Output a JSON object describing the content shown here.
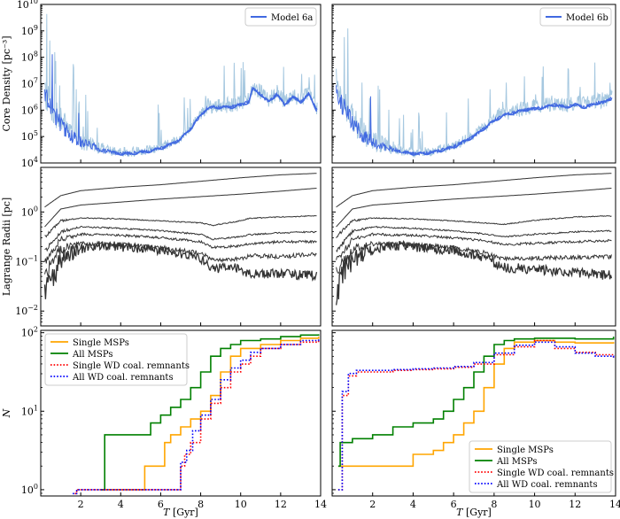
{
  "chart_data": {
    "type": "line",
    "x_axis": {
      "label_italic": "T",
      "label_unit": " [Gyr]",
      "ticks": [
        "2",
        "4",
        "6",
        "8",
        "10",
        "12",
        "14"
      ],
      "range": [
        0,
        14
      ]
    },
    "rows": [
      {
        "ylabel": "Core Density [pc⁻³]",
        "ytick_exponents": [
          "4",
          "5",
          "6",
          "7",
          "8",
          "9",
          "10"
        ],
        "yrange_log10": [
          4,
          10
        ]
      },
      {
        "ylabel": "Lagrange Radii [pc]",
        "ytick_exponents": [
          "−2",
          "−1",
          "0"
        ],
        "yrange_log10": [
          -2.3,
          0.9
        ]
      },
      {
        "ylabel": "N",
        "ytick_exponents": [
          "0",
          "1",
          "2"
        ],
        "yrange_log10": [
          -0.08,
          2.03
        ]
      }
    ],
    "panels": [
      {
        "legend": "Model 6a",
        "core_density_log10": {
          "x": [
            0.2,
            0.6,
            1.0,
            1.5,
            2.0,
            2.5,
            3.0,
            3.5,
            4.0,
            4.5,
            5.0,
            5.5,
            6.0,
            6.5,
            7.0,
            7.5,
            8.0,
            8.3,
            8.6,
            9.0,
            9.5,
            10.0,
            10.4,
            10.6,
            11.0,
            11.4,
            11.8,
            12.2,
            12.6,
            13.0,
            13.4,
            13.8
          ],
          "y": [
            6.5,
            5.9,
            5.4,
            5.0,
            4.75,
            4.6,
            4.5,
            4.4,
            4.35,
            4.35,
            4.4,
            4.45,
            4.55,
            4.7,
            4.9,
            5.3,
            5.8,
            6.05,
            6.1,
            6.1,
            6.1,
            6.2,
            6.3,
            6.8,
            6.6,
            6.3,
            6.6,
            6.2,
            6.5,
            6.3,
            6.6,
            6.0
          ]
        },
        "lagrange_radii_log10": [
          {
            "x": [
              0.2,
              1,
              2,
              4,
              6,
              8,
              10,
              12,
              13.8
            ],
            "y": [
              0.1,
              0.33,
              0.43,
              0.5,
              0.55,
              0.62,
              0.69,
              0.75,
              0.78
            ]
          },
          {
            "x": [
              0.2,
              1,
              2,
              4,
              6,
              8,
              10,
              12,
              13.8
            ],
            "y": [
              -0.3,
              0.06,
              0.14,
              0.2,
              0.26,
              0.31,
              0.36,
              0.42,
              0.48
            ]
          },
          {
            "x": [
              0.2,
              1,
              2,
              4,
              6,
              8,
              8.6,
              10,
              10.4,
              12,
              13.8
            ],
            "y": [
              -0.5,
              -0.18,
              -0.12,
              -0.14,
              -0.18,
              -0.22,
              -0.27,
              -0.18,
              -0.13,
              -0.1,
              -0.08
            ]
          },
          {
            "x": [
              0.2,
              1,
              2,
              4,
              6,
              8,
              8.6,
              10,
              10.4,
              12,
              13.8
            ],
            "y": [
              -0.8,
              -0.4,
              -0.3,
              -0.33,
              -0.38,
              -0.45,
              -0.55,
              -0.5,
              -0.46,
              -0.42,
              -0.4
            ]
          },
          {
            "x": [
              0.2,
              1,
              2,
              4,
              6,
              8,
              8.6,
              10,
              10.4,
              12,
              13.8
            ],
            "y": [
              -1.0,
              -0.55,
              -0.45,
              -0.47,
              -0.52,
              -0.6,
              -0.72,
              -0.68,
              -0.64,
              -0.6,
              -0.6
            ]
          },
          {
            "x": [
              0.2,
              1,
              2,
              4,
              6,
              8,
              8.6,
              10,
              10.4,
              12,
              13.8
            ],
            "y": [
              -1.25,
              -0.75,
              -0.64,
              -0.66,
              -0.72,
              -0.82,
              -0.97,
              -0.95,
              -0.88,
              -0.9,
              -0.85
            ]
          },
          {
            "x": [
              0.2,
              1,
              2,
              3,
              4,
              6,
              8,
              8.6,
              9,
              10,
              10.4,
              12,
              13.8
            ],
            "y": [
              -1.55,
              -0.95,
              -0.75,
              -0.68,
              -0.7,
              -0.77,
              -0.94,
              -1.15,
              -1.12,
              -1.13,
              -1.25,
              -1.25,
              -1.28
            ]
          }
        ],
        "msps_log10": {
          "legend_position": "upper-left",
          "series": [
            {
              "name": "Single MSPs",
              "color": "#ffa500",
              "style": "solid",
              "x": [
                3.0,
                5.1,
                5.2,
                6.0,
                6.2,
                6.5,
                7.0,
                7.5,
                8.0,
                8.5,
                9.0,
                9.5,
                10.0,
                11.0,
                12.0,
                13.0,
                13.9
              ],
              "y": [
                0,
                0,
                0.3,
                0.3,
                0.6,
                0.7,
                0.8,
                0.9,
                1.0,
                1.2,
                1.5,
                1.7,
                1.8,
                1.85,
                1.9,
                1.93,
                1.95
              ]
            },
            {
              "name": "All MSPs",
              "color": "#008000",
              "style": "solid",
              "x": [
                3.0,
                3.2,
                5.0,
                5.5,
                6.0,
                6.5,
                7.0,
                7.5,
                8.0,
                8.5,
                9.0,
                9.5,
                10.0,
                11.0,
                12.0,
                13.0,
                13.9
              ],
              "y": [
                0,
                0.7,
                0.7,
                0.85,
                0.95,
                1.05,
                1.15,
                1.3,
                1.5,
                1.7,
                1.8,
                1.85,
                1.9,
                1.92,
                1.95,
                1.97,
                1.98
              ]
            },
            {
              "name": "Single WD coal. remnants",
              "color": "#ff0000",
              "style": "dotted",
              "x": [
                1.7,
                1.8,
                5.0,
                7.0,
                7.2,
                7.5,
                8.0,
                8.5,
                9.0,
                9.5,
                10.0,
                10.5,
                11.0,
                12.0,
                13.0,
                13.9
              ],
              "y": [
                -0.05,
                0,
                0,
                0.3,
                0.45,
                0.6,
                0.9,
                1.1,
                1.3,
                1.5,
                1.6,
                1.7,
                1.8,
                1.85,
                1.88,
                1.92
              ]
            },
            {
              "name": "All WD coal. remnants",
              "color": "#0000ff",
              "style": "dotted",
              "x": [
                1.6,
                1.8,
                5.0,
                7.0,
                7.3,
                7.6,
                8.0,
                8.5,
                9.0,
                9.5,
                10.0,
                10.5,
                11.0,
                12.0,
                13.0,
                13.9
              ],
              "y": [
                -0.05,
                0,
                0,
                0.35,
                0.5,
                0.75,
                0.95,
                1.15,
                1.4,
                1.55,
                1.65,
                1.75,
                1.8,
                1.85,
                1.9,
                1.93
              ]
            }
          ]
        }
      },
      {
        "legend": "Model 6b",
        "core_density_log10": {
          "x": [
            0.2,
            0.6,
            1.0,
            1.5,
            2.0,
            2.5,
            3.0,
            3.5,
            4.0,
            4.5,
            5.0,
            5.5,
            6.0,
            6.5,
            7.0,
            7.5,
            8.0,
            8.5,
            9.0,
            9.5,
            10.0,
            10.5,
            11.0,
            11.5,
            12.0,
            12.5,
            13.0,
            13.5,
            13.9
          ],
          "y": [
            6.5,
            6.0,
            5.5,
            5.0,
            4.75,
            4.6,
            4.5,
            4.4,
            4.35,
            4.35,
            4.4,
            4.5,
            4.6,
            4.8,
            5.0,
            5.3,
            5.6,
            5.8,
            5.9,
            6.0,
            6.05,
            6.1,
            6.2,
            6.1,
            6.2,
            6.1,
            6.25,
            6.3,
            6.5
          ]
        },
        "lagrange_radii_log10": [
          {
            "x": [
              0.2,
              1,
              2,
              4,
              6,
              8,
              10,
              12,
              13.8
            ],
            "y": [
              0.1,
              0.33,
              0.43,
              0.5,
              0.55,
              0.62,
              0.69,
              0.75,
              0.78
            ]
          },
          {
            "x": [
              0.2,
              1,
              2,
              4,
              6,
              8,
              10,
              12,
              13.8
            ],
            "y": [
              -0.3,
              0.06,
              0.14,
              0.2,
              0.26,
              0.31,
              0.36,
              0.42,
              0.48
            ]
          },
          {
            "x": [
              0.2,
              1,
              2,
              4,
              6,
              7.5,
              8.5,
              10,
              12,
              13.8
            ],
            "y": [
              -0.5,
              -0.18,
              -0.12,
              -0.14,
              -0.18,
              -0.22,
              -0.25,
              -0.17,
              -0.1,
              -0.08
            ]
          },
          {
            "x": [
              0.2,
              1,
              2,
              4,
              6,
              7.5,
              8.5,
              10,
              12,
              13.8
            ],
            "y": [
              -0.8,
              -0.4,
              -0.3,
              -0.33,
              -0.38,
              -0.44,
              -0.5,
              -0.45,
              -0.4,
              -0.38
            ]
          },
          {
            "x": [
              0.2,
              1,
              2,
              4,
              6,
              7.5,
              8.5,
              10,
              12,
              13.8
            ],
            "y": [
              -1.0,
              -0.55,
              -0.45,
              -0.47,
              -0.52,
              -0.58,
              -0.66,
              -0.63,
              -0.6,
              -0.58
            ]
          },
          {
            "x": [
              0.2,
              1,
              2,
              4,
              6,
              7.5,
              8.5,
              10,
              12,
              13.8
            ],
            "y": [
              -1.25,
              -0.75,
              -0.64,
              -0.66,
              -0.72,
              -0.82,
              -0.95,
              -0.93,
              -0.92,
              -0.9
            ]
          },
          {
            "x": [
              0.2,
              1,
              2,
              3,
              4,
              6,
              7.5,
              8.5,
              10,
              12,
              13.8
            ],
            "y": [
              -1.55,
              -0.95,
              -0.75,
              -0.68,
              -0.7,
              -0.77,
              -0.92,
              -1.12,
              -1.15,
              -1.22,
              -1.28
            ]
          }
        ],
        "msps_log10": {
          "legend_position": "lower-right",
          "series": [
            {
              "name": "Single MSPs",
              "color": "#ffa500",
              "style": "solid",
              "x": [
                0.3,
                0.4,
                3.8,
                4.0,
                5.0,
                5.5,
                6.0,
                6.5,
                7.0,
                7.5,
                8.0,
                8.5,
                9.0,
                10.0,
                11.0,
                12.0,
                13.9
              ],
              "y": [
                0.3,
                0.3,
                0.3,
                0.45,
                0.5,
                0.6,
                0.7,
                0.85,
                1.0,
                1.3,
                1.6,
                1.8,
                1.88,
                1.9,
                1.88,
                1.87,
                1.88
              ]
            },
            {
              "name": "All MSPs",
              "color": "#008000",
              "style": "solid",
              "x": [
                0.3,
                0.4,
                1.0,
                2.0,
                3.0,
                4.0,
                5.0,
                5.5,
                6.0,
                6.5,
                7.0,
                7.5,
                8.0,
                8.5,
                9.0,
                10.0,
                11.0,
                12.0,
                13.9
              ],
              "y": [
                0.3,
                0.6,
                0.65,
                0.7,
                0.8,
                0.85,
                0.9,
                1.0,
                1.15,
                1.3,
                1.5,
                1.7,
                1.85,
                1.9,
                1.92,
                1.93,
                1.93,
                1.92,
                1.95
              ]
            },
            {
              "name": "Single WD coal. remnants",
              "color": "#ff0000",
              "style": "dotted",
              "x": [
                0.3,
                0.5,
                0.8,
                1.2,
                2.0,
                3.0,
                4.0,
                5.0,
                6.0,
                7.0,
                8.0,
                9.0,
                10.0,
                11.0,
                12.0,
                13.0,
                13.9
              ],
              "y": [
                0.0,
                1.2,
                1.45,
                1.5,
                1.5,
                1.52,
                1.53,
                1.54,
                1.56,
                1.6,
                1.72,
                1.82,
                1.9,
                1.8,
                1.75,
                1.72,
                1.68
              ]
            },
            {
              "name": "All WD coal. remnants",
              "color": "#0000ff",
              "style": "dotted",
              "x": [
                0.3,
                0.5,
                0.8,
                1.2,
                2.0,
                3.0,
                4.0,
                5.0,
                6.0,
                7.0,
                8.0,
                9.0,
                10.0,
                11.0,
                12.0,
                13.0,
                13.9
              ],
              "y": [
                0.0,
                1.25,
                1.48,
                1.52,
                1.52,
                1.53,
                1.54,
                1.55,
                1.57,
                1.62,
                1.74,
                1.84,
                1.88,
                1.82,
                1.74,
                1.7,
                1.66
              ]
            }
          ]
        }
      }
    ],
    "colors": {
      "density_light": "#a6c8e0",
      "density_dark": "#4169e1",
      "lagrange": "#333333",
      "frame": "#000000"
    }
  }
}
